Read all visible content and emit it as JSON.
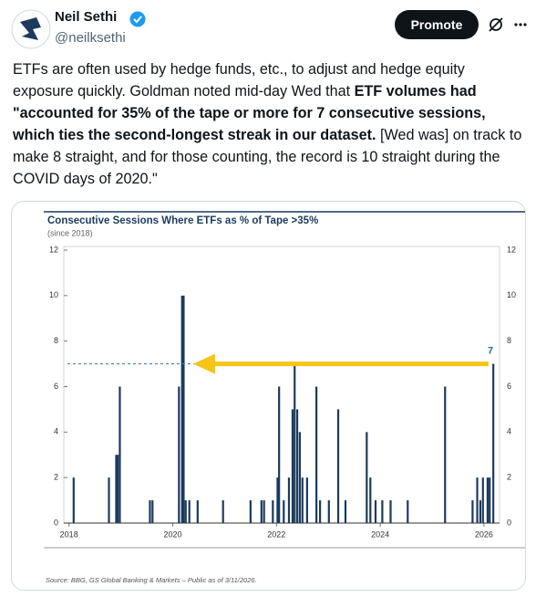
{
  "tweet": {
    "author": "Neil Sethi",
    "handle": "@neilksethi",
    "button": "Promote",
    "segments": [
      {
        "text": "ETFs are often used by hedge funds, etc., to adjust and hedge equity exposure quickly.  Goldman noted mid-day Wed that ",
        "bold": false
      },
      {
        "text": "ETF volumes had \"accounted for 35% of the tape or more for 7 consecutive sessions, which ties the second-longest streak in our dataset.",
        "bold": true
      },
      {
        "text": " [Wed was] on track to make 8 straight, and for those counting, the record is 10 straight during the COVID days of 2020.\"",
        "bold": false
      }
    ]
  },
  "chart_data": {
    "type": "bar",
    "title": "Consecutive Sessions Where ETFs as % of Tape >35%",
    "subtitle": "(since 2018)",
    "source": "Source: BBG, GS Global Banking & Markets – Public as of 3/11/2026.",
    "annotation": 7,
    "color": "#1c3a5e",
    "x": [
      2018.09,
      2018.77,
      2018.91,
      2018.94,
      2018.98,
      2019.56,
      2019.61,
      2020.12,
      2020.18,
      2020.21,
      2020.25,
      2020.32,
      2020.48,
      2020.97,
      2021.5,
      2021.71,
      2021.76,
      2021.93,
      2022.02,
      2022.05,
      2022.14,
      2022.24,
      2022.31,
      2022.35,
      2022.4,
      2022.45,
      2022.5,
      2022.59,
      2022.77,
      2022.84,
      2023.01,
      2023.19,
      2023.33,
      2023.74,
      2023.81,
      2023.91,
      2024.04,
      2024.2,
      2024.53,
      2025.25,
      2025.78,
      2025.87,
      2025.93,
      2025.98,
      2026.07,
      2026.11,
      2026.18
    ],
    "values": [
      2,
      2,
      3,
      3,
      6,
      1,
      1,
      6,
      10,
      10,
      1,
      1,
      1,
      1,
      1,
      1,
      1,
      1,
      2,
      6,
      1,
      2,
      5,
      7,
      5,
      4,
      2,
      2,
      6,
      1,
      1,
      5,
      1,
      4,
      2,
      1,
      1,
      1,
      1,
      6,
      1,
      2,
      1,
      2,
      2,
      2,
      7
    ],
    "xlim": [
      2017.9,
      2026.3
    ],
    "xticks": [
      2018,
      2020,
      2022,
      2024,
      2026
    ],
    "ylim": [
      0,
      12
    ],
    "yticks": [
      0,
      2,
      4,
      6,
      8,
      10,
      12
    ]
  }
}
